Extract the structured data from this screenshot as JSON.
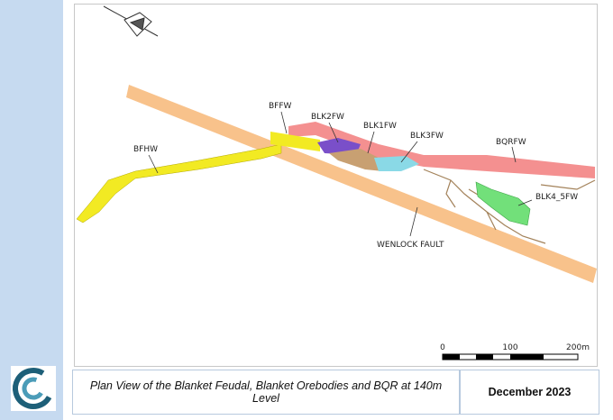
{
  "map": {
    "labels": {
      "bfhw": "BFHW",
      "bffw": "BFFW",
      "blk2fw": "BLK2FW",
      "blk1fw": "BLK1FW",
      "blk3fw": "BLK3FW",
      "bqrfw": "BQRFW",
      "blk4_5fw": "BLK4_5FW",
      "fault": "WENLOCK FAULT"
    },
    "scale_bar": [
      "0",
      "100",
      "200m"
    ]
  },
  "footer": {
    "caption": "Plan View of the Blanket Feudal, Blanket Orebodies and BQR at 140m Level",
    "date": "December 2023"
  }
}
